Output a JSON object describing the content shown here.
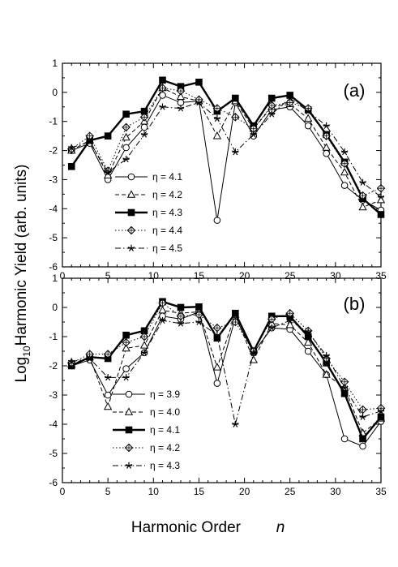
{
  "figure": {
    "ylabel_prefix": "Log",
    "ylabel_sub": "10",
    "ylabel_rest": "Harmonic Yield (arb. units)",
    "xlabel": "Harmonic Order",
    "xlabel_var": "n"
  },
  "chart_data": [
    {
      "type": "line",
      "panel_label": "(a)",
      "xlim": [
        0,
        35
      ],
      "ylim": [
        -6,
        1
      ],
      "x_ticks": [
        "0",
        "5",
        "10",
        "15",
        "20",
        "25",
        "30",
        "35"
      ],
      "y_ticks": [
        "1",
        "0",
        "-1",
        "-2",
        "-3",
        "-4",
        "-5",
        "-6"
      ],
      "x": [
        1,
        3,
        5,
        7,
        9,
        11,
        13,
        15,
        17,
        19,
        21,
        23,
        25,
        27,
        29,
        31,
        33,
        35
      ],
      "series": [
        {
          "name": "η = 4.1",
          "marker": "circle",
          "dash": "solid",
          "width": 1,
          "values": [
            -2.0,
            -1.75,
            -3.0,
            -1.9,
            -1.2,
            -0.1,
            -0.35,
            -0.3,
            -4.4,
            -0.35,
            -1.5,
            -0.6,
            -0.5,
            -1.15,
            -2.1,
            -3.2,
            -3.7,
            -4.05
          ]
        },
        {
          "name": "η = 4.2",
          "marker": "triangle",
          "dash": "dashed",
          "width": 1,
          "values": [
            -2.0,
            -1.65,
            -2.85,
            -1.55,
            -1.0,
            0.15,
            -0.15,
            -0.3,
            -1.5,
            -0.3,
            -1.25,
            -0.5,
            -0.4,
            -0.9,
            -1.9,
            -2.75,
            -3.95,
            -3.7
          ]
        },
        {
          "name": "η = 4.3",
          "marker": "square",
          "dash": "solid",
          "width": 2.4,
          "values": [
            -2.55,
            -1.65,
            -1.5,
            -0.75,
            -0.65,
            0.42,
            0.2,
            0.35,
            -0.65,
            -0.2,
            -1.15,
            -0.2,
            -0.1,
            -0.6,
            -1.45,
            -2.4,
            -3.65,
            -4.2
          ]
        },
        {
          "name": "η = 4.4",
          "marker": "diamond",
          "dash": "dotted",
          "width": 1,
          "values": [
            -1.95,
            -1.5,
            -2.7,
            -1.2,
            -0.85,
            0.15,
            0.05,
            -0.25,
            -0.55,
            -0.85,
            -1.25,
            -0.45,
            -0.35,
            -0.55,
            -1.5,
            -2.45,
            -3.55,
            -3.3
          ]
        },
        {
          "name": "η = 4.5",
          "marker": "star",
          "dash": "dashdot",
          "width": 1,
          "values": [
            -1.9,
            -1.7,
            -2.75,
            -2.3,
            -1.45,
            -0.5,
            -0.55,
            -0.35,
            -0.9,
            -2.05,
            -1.45,
            -0.75,
            -0.2,
            -0.65,
            -1.15,
            -2.05,
            -3.1,
            -3.6
          ]
        }
      ]
    },
    {
      "type": "line",
      "panel_label": "(b)",
      "xlim": [
        0,
        35
      ],
      "ylim": [
        -6,
        1
      ],
      "x_ticks": [
        "0",
        "5",
        "10",
        "15",
        "20",
        "25",
        "30",
        "35"
      ],
      "y_ticks": [
        "1",
        "0",
        "-1",
        "-2",
        "-3",
        "-4",
        "-5",
        "-6"
      ],
      "x": [
        1,
        3,
        5,
        7,
        9,
        11,
        13,
        15,
        17,
        19,
        21,
        23,
        25,
        27,
        29,
        31,
        33,
        35
      ],
      "series": [
        {
          "name": "η = 3.9",
          "marker": "circle",
          "dash": "solid",
          "width": 1,
          "values": [
            -2.0,
            -1.8,
            -3.0,
            -2.1,
            -1.55,
            -0.3,
            -0.4,
            -0.15,
            -2.6,
            -0.35,
            -1.55,
            -0.7,
            -0.75,
            -1.5,
            -2.3,
            -4.5,
            -4.75,
            -3.9
          ]
        },
        {
          "name": "η = 4.0",
          "marker": "triangle",
          "dash": "dashed",
          "width": 1,
          "values": [
            -1.95,
            -1.7,
            -3.4,
            -1.4,
            -1.3,
            -0.1,
            -0.2,
            -0.15,
            -2.05,
            -0.25,
            -1.8,
            -0.55,
            -0.6,
            -1.2,
            -2.3,
            -2.75,
            -4.3,
            -3.8
          ]
        },
        {
          "name": "η = 4.1",
          "marker": "square",
          "dash": "solid",
          "width": 2.4,
          "values": [
            -2.0,
            -1.7,
            -1.75,
            -0.95,
            -0.8,
            0.2,
            0.0,
            0.02,
            -1.05,
            -0.2,
            -1.5,
            -0.3,
            -0.3,
            -1.0,
            -1.9,
            -2.95,
            -4.5,
            -3.75
          ]
        },
        {
          "name": "η = 4.2",
          "marker": "diamond",
          "dash": "dotted",
          "width": 1,
          "values": [
            -1.9,
            -1.6,
            -1.6,
            -1.2,
            -1.0,
            0.15,
            -0.3,
            -0.25,
            -0.7,
            -0.5,
            -1.5,
            -0.4,
            -0.2,
            -0.8,
            -1.75,
            -2.55,
            -3.5,
            -3.45
          ]
        },
        {
          "name": "η = 4.3",
          "marker": "star",
          "dash": "dashdot",
          "width": 1,
          "values": [
            -1.85,
            -1.75,
            -2.4,
            -2.4,
            -1.55,
            -0.45,
            -0.55,
            -0.5,
            -0.95,
            -4.0,
            -1.55,
            -0.7,
            -0.45,
            -0.85,
            -1.65,
            -2.75,
            -3.75,
            -3.55
          ]
        }
      ]
    }
  ]
}
